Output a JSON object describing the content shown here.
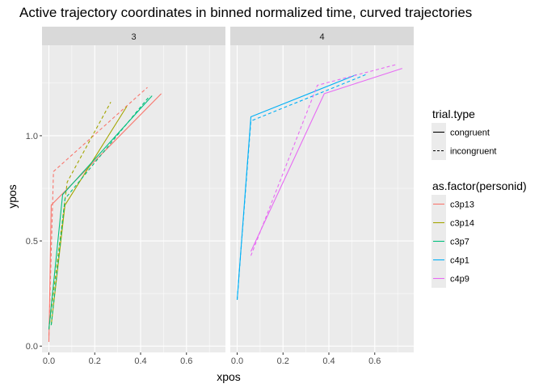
{
  "chart_data": {
    "type": "line",
    "title": "Active trajectory coordinates in binned normalized time, curved trajectories",
    "xlabel": "xpos",
    "ylabel": "ypos",
    "xlim": [
      -0.03,
      0.77
    ],
    "ylim": [
      -0.03,
      1.43
    ],
    "x_ticks": [
      {
        "value": 0.0,
        "label": "0.0"
      },
      {
        "value": 0.2,
        "label": "0.2"
      },
      {
        "value": 0.4,
        "label": "0.4"
      },
      {
        "value": 0.6,
        "label": "0.6"
      }
    ],
    "y_ticks": [
      {
        "value": 0.0,
        "label": "0.0"
      },
      {
        "value": 0.5,
        "label": "0.5"
      },
      {
        "value": 1.0,
        "label": "1.0"
      }
    ],
    "grid": true,
    "facets": [
      {
        "label": "3",
        "series": [
          {
            "person": "c3p13",
            "trial": "congruent",
            "points": [
              [
                0.0,
                0.02
              ],
              [
                0.01,
                0.67
              ],
              [
                0.49,
                1.2
              ]
            ]
          },
          {
            "person": "c3p13",
            "trial": "incongruent",
            "points": [
              [
                0.0,
                0.05
              ],
              [
                0.02,
                0.83
              ],
              [
                0.43,
                1.23
              ]
            ]
          },
          {
            "person": "c3p14",
            "trial": "congruent",
            "points": [
              [
                0.01,
                0.1
              ],
              [
                0.07,
                0.67
              ],
              [
                0.34,
                1.14
              ]
            ]
          },
          {
            "person": "c3p14",
            "trial": "incongruent",
            "points": [
              [
                0.0,
                0.08
              ],
              [
                0.08,
                0.78
              ],
              [
                0.27,
                1.16
              ]
            ]
          },
          {
            "person": "c3p7",
            "trial": "congruent",
            "points": [
              [
                0.0,
                0.08
              ],
              [
                0.06,
                0.72
              ],
              [
                0.45,
                1.19
              ]
            ]
          },
          {
            "person": "c3p7",
            "trial": "incongruent",
            "points": [
              [
                0.01,
                0.1
              ],
              [
                0.07,
                0.7
              ],
              [
                0.44,
                1.19
              ]
            ]
          }
        ]
      },
      {
        "label": "4",
        "series": [
          {
            "person": "c4p1",
            "trial": "congruent",
            "points": [
              [
                0.0,
                0.22
              ],
              [
                0.06,
                1.09
              ],
              [
                0.52,
                1.29
              ]
            ]
          },
          {
            "person": "c4p1",
            "trial": "incongruent",
            "points": [
              [
                0.0,
                0.22
              ],
              [
                0.06,
                1.07
              ],
              [
                0.56,
                1.29
              ]
            ]
          },
          {
            "person": "c4p9",
            "trial": "congruent",
            "points": [
              [
                0.06,
                0.45
              ],
              [
                0.38,
                1.2
              ],
              [
                0.72,
                1.32
              ]
            ]
          },
          {
            "person": "c4p9",
            "trial": "incongruent",
            "points": [
              [
                0.06,
                0.43
              ],
              [
                0.35,
                1.24
              ],
              [
                0.7,
                1.34
              ]
            ]
          }
        ]
      }
    ],
    "legends": [
      {
        "title": "trial.type",
        "kind": "linetype",
        "entries": [
          {
            "label": "congruent",
            "dash": "solid"
          },
          {
            "label": "incongruent",
            "dash": "dashed"
          }
        ]
      },
      {
        "title": "as.factor(personid)",
        "kind": "color",
        "entries": [
          {
            "label": "c3p13",
            "color": "#F8766D"
          },
          {
            "label": "c3p14",
            "color": "#A3A500"
          },
          {
            "label": "c3p7",
            "color": "#00BF7D"
          },
          {
            "label": "c4p1",
            "color": "#00B0F6"
          },
          {
            "label": "c4p9",
            "color": "#E76BF3"
          }
        ]
      }
    ],
    "legend_position": "right",
    "colors": {
      "panel_background": "#EBEBEB",
      "strip_background": "#D9D9D9",
      "grid_line": "#FFFFFF",
      "c3p13": "#F8766D",
      "c3p14": "#A3A500",
      "c3p7": "#00BF7D",
      "c4p1": "#00B0F6",
      "c4p9": "#E76BF3"
    }
  }
}
